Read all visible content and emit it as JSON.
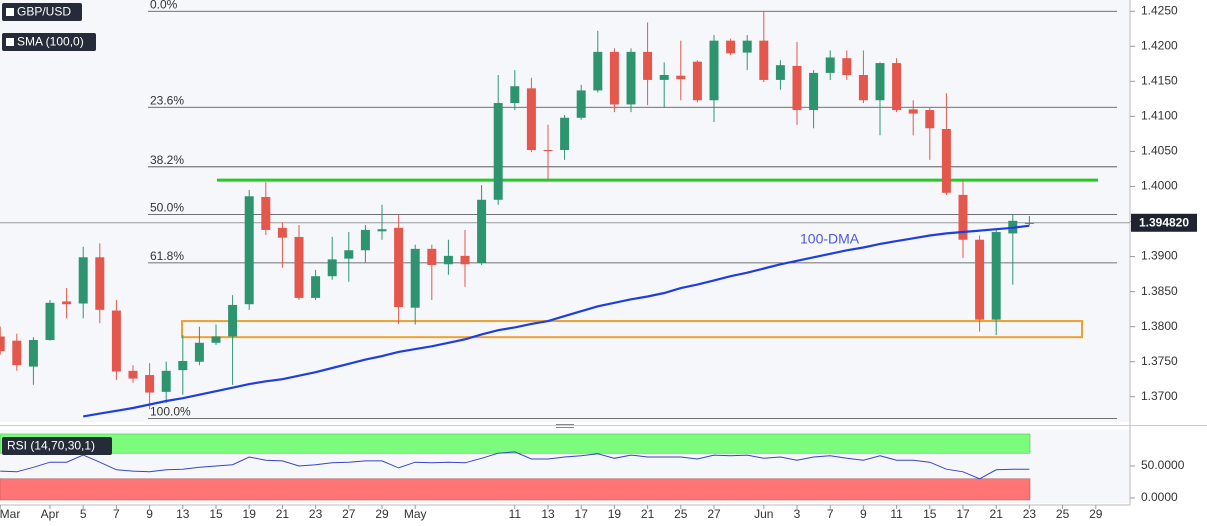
{
  "chart_data": [
    {
      "type": "candlestick",
      "title": "GBP/USD",
      "categories": [
        "Mar",
        null,
        null,
        "Apr",
        null,
        "5",
        null,
        "7",
        null,
        "9",
        null,
        "13",
        null,
        "15",
        null,
        "19",
        null,
        "21",
        null,
        "23",
        null,
        "27",
        null,
        "29",
        null,
        "May",
        null,
        null,
        null,
        null,
        null,
        "11",
        null,
        "13",
        null,
        "17",
        null,
        "19",
        null,
        "21",
        null,
        "25",
        null,
        "27",
        null,
        null,
        "Jun",
        null,
        "3",
        null,
        "7",
        null,
        "9",
        null,
        "11",
        null,
        "15",
        null,
        "17",
        null,
        "21",
        null,
        "23",
        null,
        "25",
        null,
        "29"
      ],
      "open": [
        1.3786,
        1.378,
        1.3743,
        1.3781,
        1.3836,
        1.3833,
        1.3899,
        1.3823,
        1.3737,
        1.3731,
        1.3707,
        1.3738,
        1.375,
        1.3777,
        1.3786,
        1.3832,
        1.3985,
        1.3941,
        1.3928,
        1.3841,
        1.3872,
        1.3897,
        1.3909,
        1.3936,
        1.3941,
        1.3827,
        1.3911,
        1.3889,
        1.3901,
        1.3891,
        1.3981,
        1.4119,
        1.414,
        1.4052,
        1.4052,
        1.4098,
        1.4137,
        1.4192,
        1.4117,
        1.4192,
        1.4152,
        1.4158,
        1.4178,
        1.4123,
        1.4208,
        1.4191,
        1.4208,
        1.4152,
        1.4172,
        1.4109,
        1.4162,
        1.4183,
        1.4159,
        1.4123,
        1.4176,
        1.411,
        1.4109,
        1.4082,
        1.3988,
        1.3924,
        1.381,
        1.3933,
        1.3947,
        null,
        null,
        null,
        null
      ],
      "high": [
        1.38,
        1.379,
        1.3785,
        1.3838,
        1.3855,
        1.3914,
        1.3919,
        1.3838,
        1.3745,
        1.3748,
        1.375,
        1.3788,
        1.38,
        1.3803,
        1.3845,
        1.3995,
        1.4006,
        1.3949,
        1.3945,
        1.3881,
        1.3928,
        1.3935,
        1.3945,
        1.3974,
        1.3959,
        1.3917,
        1.3917,
        1.3924,
        1.3938,
        1.4002,
        1.4159,
        1.4166,
        1.4155,
        1.4088,
        1.4102,
        1.4145,
        1.4222,
        1.4197,
        1.4197,
        1.4234,
        1.4177,
        1.4208,
        1.418,
        1.4216,
        1.4211,
        1.4216,
        1.4249,
        1.418,
        1.4206,
        1.4166,
        1.4194,
        1.4194,
        1.4194,
        1.4177,
        1.4183,
        1.4123,
        1.4112,
        1.4133,
        1.4009,
        1.393,
        1.3938,
        1.396,
        1.3958,
        null,
        null,
        null,
        null
      ],
      "low": [
        1.376,
        1.3737,
        1.3717,
        1.378,
        1.3812,
        1.3812,
        1.3805,
        1.3724,
        1.372,
        1.3682,
        1.3691,
        1.3703,
        1.3745,
        1.3774,
        1.3717,
        1.3824,
        1.3931,
        1.3884,
        1.3838,
        1.3838,
        1.3867,
        1.3864,
        1.3892,
        1.3924,
        1.3804,
        1.3803,
        1.3838,
        1.3874,
        1.3857,
        1.3888,
        1.3974,
        1.4109,
        1.4049,
        1.4009,
        1.4038,
        1.4095,
        1.4134,
        1.4106,
        1.4106,
        1.4116,
        1.4112,
        1.4123,
        1.412,
        1.4092,
        1.4187,
        1.4166,
        1.4149,
        1.4138,
        1.4088,
        1.4083,
        1.4152,
        1.4152,
        1.4119,
        1.4073,
        1.4106,
        1.4073,
        1.4038,
        1.3988,
        1.3898,
        1.3793,
        1.3788,
        1.386,
        1.3945,
        null,
        null,
        null,
        null
      ],
      "close": [
        1.3765,
        1.3745,
        1.3781,
        1.3834,
        1.3832,
        1.3899,
        1.3824,
        1.3736,
        1.3726,
        1.3706,
        1.3737,
        1.3751,
        1.3777,
        1.3786,
        1.3831,
        1.3986,
        1.3938,
        1.3927,
        1.3841,
        1.3872,
        1.3896,
        1.3909,
        1.3938,
        1.3939,
        1.3828,
        1.3911,
        1.3888,
        1.3901,
        1.3889,
        1.3981,
        1.4119,
        1.4143,
        1.4052,
        1.4051,
        1.4098,
        1.4137,
        1.4192,
        1.4117,
        1.4192,
        1.4152,
        1.4159,
        1.4153,
        1.4123,
        1.4208,
        1.419,
        1.4208,
        1.4152,
        1.4173,
        1.4109,
        1.4162,
        1.4184,
        1.4159,
        1.4123,
        1.4176,
        1.4109,
        1.4104,
        1.4083,
        1.3991,
        1.3924,
        1.381,
        1.3935,
        1.3951,
        1.3948,
        null,
        null,
        null,
        null
      ],
      "up_color": "#2e9470",
      "down_color": "#e3574d",
      "series": [
        {
          "name": "SMA (100,0)",
          "color": "#1f3ee0",
          "values": [
            null,
            null,
            null,
            null,
            null,
            1.3672,
            1.3676,
            1.368,
            1.3684,
            1.3689,
            1.3694,
            1.3698,
            1.3703,
            1.3708,
            1.3713,
            1.3718,
            1.3722,
            1.3725,
            1.373,
            1.3735,
            1.3741,
            1.3747,
            1.3753,
            1.3758,
            1.3764,
            1.3768,
            1.3772,
            1.3777,
            1.3782,
            1.3789,
            1.3795,
            1.3799,
            1.3804,
            1.3808,
            1.3815,
            1.3822,
            1.3829,
            1.3834,
            1.3839,
            1.3843,
            1.3848,
            1.3855,
            1.386,
            1.3866,
            1.3872,
            1.3877,
            1.3883,
            1.3889,
            1.3894,
            1.3899,
            1.3904,
            1.3909,
            1.3913,
            1.3918,
            1.3922,
            1.3926,
            1.393,
            1.3933,
            1.3935,
            1.3937,
            1.3939,
            1.3941,
            1.3944,
            null,
            null,
            null,
            null
          ]
        }
      ],
      "annotation": "100-DMA",
      "fib_levels": [
        {
          "name": "0.0%",
          "value": 1.425
        },
        {
          "name": "23.6%",
          "value": 1.4113
        },
        {
          "name": "38.2%",
          "value": 1.4028
        },
        {
          "name": "50.0%",
          "value": 1.396
        },
        {
          "name": "61.8%",
          "value": 1.3891
        },
        {
          "name": "100.0%",
          "value": 1.3669
        }
      ],
      "resistance": {
        "value": 1.4009,
        "color": "#22cc22"
      },
      "support_zone": {
        "range": [
          1.3785,
          1.3808
        ],
        "color": "#f0a030"
      },
      "last": {
        "value": 1.39482,
        "label": "1.394820"
      },
      "ylim": [
        1.3664,
        1.4266
      ],
      "yticks": [
        {
          "value": 1.425,
          "label": "1.4250"
        },
        {
          "value": 1.42,
          "label": "1.4200"
        },
        {
          "value": 1.415,
          "label": "1.4150"
        },
        {
          "value": 1.41,
          "label": "1.4100"
        },
        {
          "value": 1.405,
          "label": "1.4050"
        },
        {
          "value": 1.4,
          "label": "1.4000"
        },
        {
          "value": 1.395,
          "label": "1.3950"
        },
        {
          "value": 1.39,
          "label": "1.3900"
        },
        {
          "value": 1.385,
          "label": "1.3850"
        },
        {
          "value": 1.38,
          "label": "1.3800"
        },
        {
          "value": 1.375,
          "label": "1.3750"
        },
        {
          "value": 1.37,
          "label": "1.3700"
        }
      ]
    },
    {
      "type": "line",
      "title": "RSI (14,70,30,1)",
      "color": "#3546c4",
      "values": [
        42,
        41,
        48,
        56,
        56,
        67,
        56,
        44,
        42,
        41,
        44,
        45,
        48,
        50,
        52,
        64,
        59,
        58,
        50,
        52,
        55,
        56,
        58,
        58,
        47,
        56,
        55,
        56,
        55,
        62,
        70,
        72,
        61,
        61,
        64,
        66,
        69,
        62,
        67,
        64,
        64,
        64,
        61,
        67,
        66,
        67,
        62,
        64,
        59,
        64,
        66,
        62,
        59,
        66,
        59,
        59,
        56,
        45,
        41,
        30,
        44,
        45,
        45,
        null,
        null,
        null,
        null
      ],
      "overbought": 70,
      "oversold": 30,
      "overbought_color": "#7cfc7c",
      "oversold_color": "#ff7474",
      "ylim": [
        0,
        100
      ],
      "yticks": [
        {
          "value": 50,
          "label": "50.0000"
        },
        {
          "value": 0,
          "label": "0.0000"
        }
      ]
    }
  ]
}
